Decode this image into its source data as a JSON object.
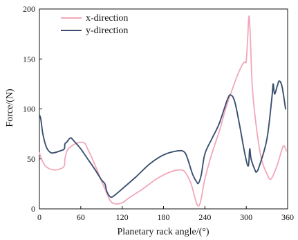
{
  "chart_data": {
    "type": "line",
    "title": "",
    "xlabel": "Planetary rack angle/(°)",
    "ylabel": "Force/(N)",
    "xlim": [
      0,
      360
    ],
    "ylim": [
      0,
      200
    ],
    "x_ticks": [
      0,
      60,
      120,
      180,
      240,
      300,
      360
    ],
    "y_ticks": [
      0,
      50,
      100,
      150,
      200
    ],
    "grid": false,
    "legend_position": "top-left",
    "series": [
      {
        "name": "x-direction",
        "color": "#f2a7b9",
        "points": [
          [
            0,
            56
          ],
          [
            5,
            47
          ],
          [
            10,
            42
          ],
          [
            20,
            39
          ],
          [
            30,
            40
          ],
          [
            36,
            43
          ],
          [
            37,
            50
          ],
          [
            40,
            58
          ],
          [
            45,
            62
          ],
          [
            55,
            66
          ],
          [
            65,
            66
          ],
          [
            70,
            60
          ],
          [
            80,
            45
          ],
          [
            90,
            28
          ],
          [
            97,
            17
          ],
          [
            103,
            8
          ],
          [
            110,
            5
          ],
          [
            120,
            6
          ],
          [
            130,
            11
          ],
          [
            150,
            20
          ],
          [
            170,
            30
          ],
          [
            190,
            37
          ],
          [
            205,
            39
          ],
          [
            212,
            36
          ],
          [
            220,
            25
          ],
          [
            226,
            10
          ],
          [
            230,
            3
          ],
          [
            234,
            8
          ],
          [
            240,
            30
          ],
          [
            250,
            55
          ],
          [
            262,
            80
          ],
          [
            270,
            100
          ],
          [
            280,
            120
          ],
          [
            288,
            135
          ],
          [
            295,
            145
          ],
          [
            298,
            147
          ],
          [
            300,
            148
          ],
          [
            302,
            170
          ],
          [
            304,
            193
          ],
          [
            306,
            170
          ],
          [
            309,
            120
          ],
          [
            315,
            80
          ],
          [
            322,
            50
          ],
          [
            330,
            35
          ],
          [
            336,
            30
          ],
          [
            345,
            44
          ],
          [
            352,
            60
          ],
          [
            355,
            63
          ],
          [
            358,
            58
          ]
        ]
      },
      {
        "name": "y-direction",
        "color": "#3b5070",
        "points": [
          [
            0,
            94
          ],
          [
            2,
            90
          ],
          [
            5,
            75
          ],
          [
            10,
            62
          ],
          [
            15,
            57
          ],
          [
            20,
            56
          ],
          [
            30,
            58
          ],
          [
            36,
            60
          ],
          [
            37,
            65
          ],
          [
            40,
            67
          ],
          [
            45,
            71
          ],
          [
            50,
            68
          ],
          [
            60,
            60
          ],
          [
            70,
            50
          ],
          [
            80,
            40
          ],
          [
            90,
            29
          ],
          [
            95,
            25
          ],
          [
            98,
            17
          ],
          [
            103,
            12
          ],
          [
            108,
            13
          ],
          [
            120,
            20
          ],
          [
            140,
            32
          ],
          [
            160,
            45
          ],
          [
            180,
            54
          ],
          [
            200,
            58
          ],
          [
            210,
            57
          ],
          [
            215,
            50
          ],
          [
            222,
            35
          ],
          [
            228,
            27
          ],
          [
            231,
            26
          ],
          [
            235,
            35
          ],
          [
            240,
            55
          ],
          [
            250,
            70
          ],
          [
            260,
            84
          ],
          [
            268,
            100
          ],
          [
            273,
            110
          ],
          [
            277,
            114
          ],
          [
            283,
            108
          ],
          [
            290,
            85
          ],
          [
            298,
            55
          ],
          [
            303,
            43
          ],
          [
            305,
            60
          ],
          [
            307,
            50
          ],
          [
            312,
            40
          ],
          [
            315,
            37
          ],
          [
            320,
            45
          ],
          [
            330,
            70
          ],
          [
            337,
            110
          ],
          [
            339,
            125
          ],
          [
            341,
            115
          ],
          [
            345,
            123
          ],
          [
            348,
            128
          ],
          [
            352,
            122
          ],
          [
            357,
            100
          ]
        ]
      }
    ]
  }
}
